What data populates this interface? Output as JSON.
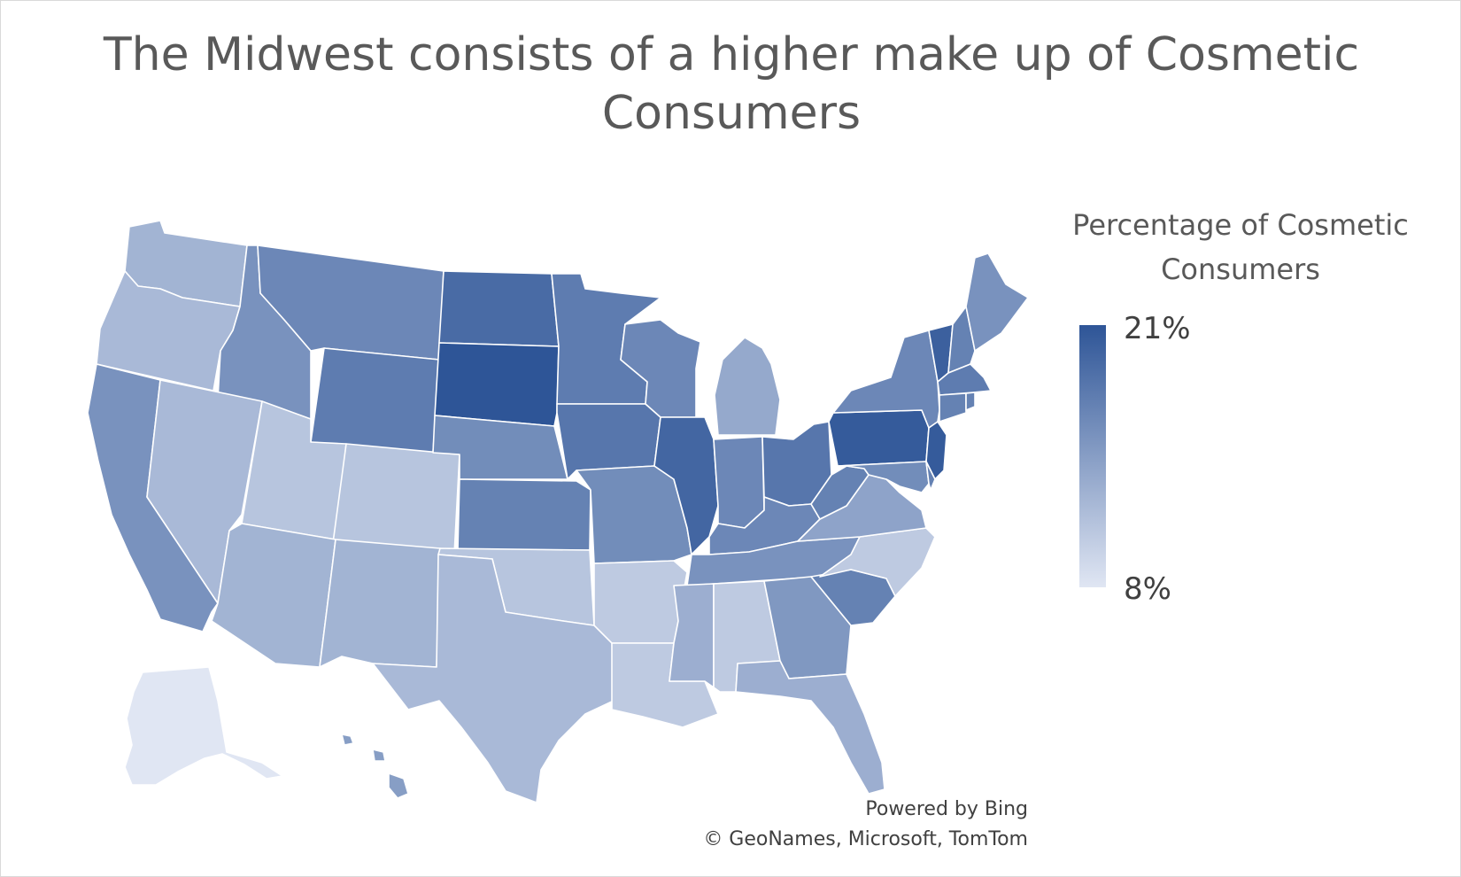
{
  "chart_data": {
    "type": "choropleth-map",
    "title": "The Midwest consists of a higher make up of Cosmetic Consumers",
    "legend": {
      "title": "Percentage of Cosmetic Consumers",
      "max_label": "21%",
      "min_label": "8%",
      "min": 8,
      "max": 21,
      "color_low": "#e0e6f3",
      "color_high": "#2e5597",
      "placement": "right"
    },
    "attribution": [
      "Powered by Bing",
      "© GeoNames, Microsoft, TomTom"
    ],
    "regions": [
      {
        "name": "Washington",
        "value": 12.5
      },
      {
        "name": "Oregon",
        "value": 12.0
      },
      {
        "name": "California",
        "value": 15.5
      },
      {
        "name": "Idaho",
        "value": 15.5
      },
      {
        "name": "Nevada",
        "value": 12.0
      },
      {
        "name": "Montana",
        "value": 16.5
      },
      {
        "name": "Wyoming",
        "value": 17.5
      },
      {
        "name": "Utah",
        "value": 11.0
      },
      {
        "name": "Colorado",
        "value": 11.0
      },
      {
        "name": "Arizona",
        "value": 12.5
      },
      {
        "name": "New Mexico",
        "value": 12.5
      },
      {
        "name": "North Dakota",
        "value": 19.0
      },
      {
        "name": "South Dakota",
        "value": 21.0
      },
      {
        "name": "Nebraska",
        "value": 16.0
      },
      {
        "name": "Kansas",
        "value": 17.0
      },
      {
        "name": "Oklahoma",
        "value": 11.0
      },
      {
        "name": "Texas",
        "value": 12.0
      },
      {
        "name": "Minnesota",
        "value": 17.5
      },
      {
        "name": "Iowa",
        "value": 18.0
      },
      {
        "name": "Missouri",
        "value": 16.0
      },
      {
        "name": "Arkansas",
        "value": 10.5
      },
      {
        "name": "Louisiana",
        "value": 10.5
      },
      {
        "name": "Wisconsin",
        "value": 16.5
      },
      {
        "name": "Illinois",
        "value": 19.5
      },
      {
        "name": "Michigan",
        "value": 13.5
      },
      {
        "name": "Indiana",
        "value": 16.5
      },
      {
        "name": "Ohio",
        "value": 18.0
      },
      {
        "name": "Kentucky",
        "value": 16.5
      },
      {
        "name": "Tennessee",
        "value": 15.5
      },
      {
        "name": "Mississippi",
        "value": 13.0
      },
      {
        "name": "Alabama",
        "value": 10.5
      },
      {
        "name": "Georgia",
        "value": 15.0
      },
      {
        "name": "Florida",
        "value": 13.0
      },
      {
        "name": "South Carolina",
        "value": 17.0
      },
      {
        "name": "North Carolina",
        "value": 10.5
      },
      {
        "name": "Virginia",
        "value": 14.0
      },
      {
        "name": "West Virginia",
        "value": 17.0
      },
      {
        "name": "Pennsylvania",
        "value": 20.5
      },
      {
        "name": "New York",
        "value": 16.5
      },
      {
        "name": "New Jersey",
        "value": 20.5
      },
      {
        "name": "Maryland",
        "value": 16.0
      },
      {
        "name": "Delaware",
        "value": 17.0
      },
      {
        "name": "Vermont",
        "value": 20.0
      },
      {
        "name": "New Hampshire",
        "value": 17.0
      },
      {
        "name": "Maine",
        "value": 15.5
      },
      {
        "name": "Massachusetts",
        "value": 17.5
      },
      {
        "name": "Connecticut",
        "value": 17.0
      },
      {
        "name": "Rhode Island",
        "value": 17.0
      },
      {
        "name": "Alaska",
        "value": 8.0
      },
      {
        "name": "Hawaii",
        "value": 14.5
      }
    ]
  }
}
